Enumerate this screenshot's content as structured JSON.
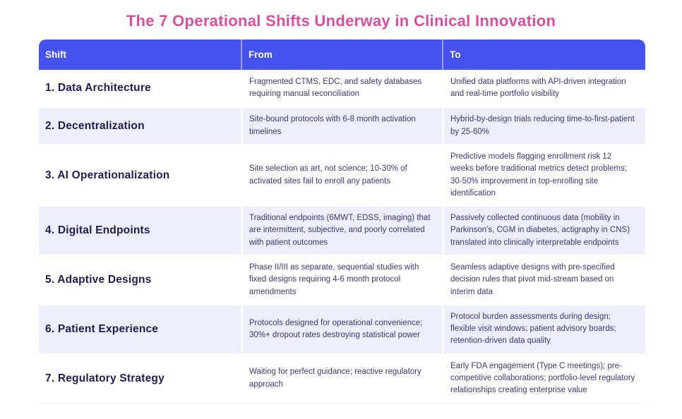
{
  "title": "The 7 Operational Shifts Underway in Clinical Innovation",
  "colors": {
    "title_text": "#d6509f",
    "header_bg": "#4652f0",
    "header_text": "#ffffff",
    "row_bg": "#ffffff",
    "row_alt_bg": "#eceefb",
    "shift_label_text": "#221c52",
    "body_text": "#3e3873"
  },
  "chart_data": {
    "type": "table",
    "title": "The 7 Operational Shifts Underway in Clinical Innovation",
    "columns": [
      "Shift",
      "From",
      "To"
    ],
    "rows": [
      [
        "1. Data Architecture",
        "Fragmented CTMS, EDC, and safety databases requiring manual reconciliation",
        "Unified data platforms with API-driven integration and real-time portfolio visibility"
      ],
      [
        "2. Decentralization",
        "Site-bound protocols with 6-8 month activation timelines",
        "Hybrid-by-design trials reducing time-to-first-patient by 25-60%"
      ],
      [
        "3. AI Operationalization",
        "Site selection as art, not science; 10-30% of activated sites fail to enroll any patients",
        "Predictive models flagging enrollment risk 12 weeks before traditional metrics detect problems; 30-50% improvement in top-enrolling site identification"
      ],
      [
        "4. Digital Endpoints",
        "Traditional endpoints (6MWT, EDSS, imaging) that are intermittent, subjective, and poorly correlated with patient outcomes",
        "Passively collected continuous data (mobility in Parkinson's, CGM in diabetes, actigraphy in CNS) translated into clinically interpretable endpoints"
      ],
      [
        "5. Adaptive Designs",
        "Phase II/III as separate, sequential studies with fixed designs requiring 4-6 month protocol amendments",
        "Seamless adaptive designs with pre-specified decision rules that pivot mid-stream based on interim data"
      ],
      [
        "6. Patient Experience",
        "Protocols designed for operational convenience; 30%+ dropout rates destroying statistical power",
        "Protocol burden assessments during design; flexible visit windows; patient advisory boards; retention-driven data quality"
      ],
      [
        "7. Regulatory Strategy",
        "Waiting for perfect guidance; reactive regulatory approach",
        "Early FDA engagement (Type C meetings); pre-competitive collaborations; portfolio-level regulatory relationships creating enterprise value"
      ]
    ]
  }
}
